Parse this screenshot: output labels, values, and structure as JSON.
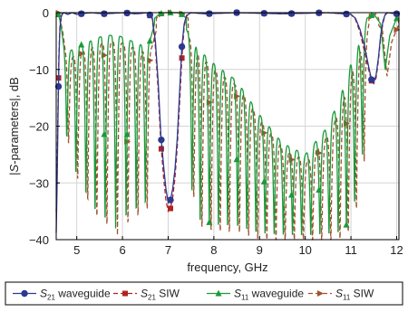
{
  "chart_data": {
    "type": "line",
    "xlabel": "frequency, GHz",
    "ylabel_parts": [
      "|",
      "S",
      "-parameters|, dB"
    ],
    "xlim": [
      4.55,
      12.05
    ],
    "ylim": [
      -40,
      0
    ],
    "xticks": [
      5,
      6,
      7,
      8,
      9,
      10,
      11,
      12
    ],
    "yticks": [
      0,
      -10,
      -20,
      -30,
      -40
    ],
    "grid": true,
    "legend_position": "bottom",
    "series": [
      {
        "name_main": "S",
        "name_sub": "21",
        "name_tail": " waveguide",
        "color": "#2b3990",
        "dash": "",
        "marker": "circle",
        "x": [
          4.55,
          4.57,
          4.59,
          4.61,
          4.63,
          4.65,
          4.68,
          4.72,
          4.8,
          4.9,
          5.0,
          5.3,
          5.6,
          6.0,
          6.3,
          6.55,
          6.65,
          6.72,
          6.78,
          6.84,
          6.9,
          6.95,
          7.0,
          7.05,
          7.1,
          7.15,
          7.2,
          7.25,
          7.3,
          7.35,
          7.4,
          7.5,
          7.8,
          8.5,
          9.5,
          10.5,
          11.0,
          11.1,
          11.2,
          11.3,
          11.4,
          11.45,
          11.5,
          11.55,
          11.6,
          11.65,
          11.7,
          11.75,
          11.8,
          12.0
        ],
        "y": [
          -38.8,
          -30,
          -18,
          -8,
          -3,
          -1,
          -0.3,
          0,
          -0.3,
          0,
          -0.3,
          0,
          -0.2,
          0,
          -0.2,
          0,
          -0.8,
          -5,
          -12,
          -21.5,
          -27,
          -31,
          -33.5,
          -33,
          -31,
          -27.5,
          -22,
          -14,
          -6,
          -2,
          -0.5,
          0,
          -0.2,
          0,
          -0.2,
          0,
          -0.3,
          -1,
          -3,
          -6,
          -10,
          -11.8,
          -12.3,
          -11,
          -8,
          -4,
          -1.5,
          -0.3,
          0,
          -0.2
        ]
      },
      {
        "name_main": "S",
        "name_sub": "21",
        "name_tail": " SIW",
        "color": "#b22222",
        "dash": "5,3",
        "marker": "square",
        "x": [
          4.55,
          4.57,
          4.59,
          4.61,
          4.63,
          4.65,
          4.68,
          4.72,
          4.8,
          4.9,
          5.0,
          5.3,
          5.6,
          6.0,
          6.3,
          6.55,
          6.65,
          6.72,
          6.78,
          6.84,
          6.9,
          6.95,
          7.0,
          7.05,
          7.1,
          7.15,
          7.2,
          7.25,
          7.3,
          7.35,
          7.4,
          7.5,
          7.8,
          8.5,
          9.5,
          10.5,
          11.0,
          11.1,
          11.2,
          11.3,
          11.4,
          11.45,
          11.5,
          11.55,
          11.6,
          11.65,
          11.7,
          11.75,
          11.8,
          12.0
        ],
        "y": [
          -35,
          -28,
          -16,
          -7,
          -2.5,
          -0.8,
          -0.2,
          0,
          -0.3,
          0,
          -0.3,
          0,
          -0.2,
          0,
          -0.2,
          0,
          -1,
          -6,
          -13.5,
          -23,
          -29,
          -33,
          -35,
          -34.5,
          -32.5,
          -29,
          -23.5,
          -16,
          -8,
          -2.5,
          -0.6,
          0,
          -0.2,
          0,
          -0.2,
          0,
          -0.3,
          -1.2,
          -3.5,
          -7,
          -10.5,
          -12,
          -12.5,
          -11.5,
          -8.5,
          -4.5,
          -1.8,
          -0.4,
          0,
          -0.2
        ]
      },
      {
        "name_main": "S",
        "name_sub": "11",
        "name_tail": " waveguide",
        "color": "#1a9a3a",
        "dash": "",
        "marker": "triangle",
        "band_shape_x": [
          4.55,
          4.6,
          4.65,
          4.7,
          4.8,
          5.0,
          5.3,
          5.6,
          5.9,
          6.2,
          6.5,
          6.6,
          6.7
        ],
        "band_shape_y": [
          0,
          -0.3,
          -2,
          -5,
          -7,
          -6,
          -5,
          -4,
          -4,
          -5,
          -6,
          -5,
          -2
        ],
        "band_floor_x": [
          4.7,
          5.0,
          5.5,
          6.0,
          6.5,
          6.7
        ],
        "band_floor_y": [
          -20,
          -30,
          -38,
          -38,
          -35,
          -30
        ],
        "band_ripple_f": [
          4.78,
          4.98,
          5.2,
          5.4,
          5.62,
          5.85,
          6.08,
          6.3,
          6.5
        ],
        "stop_x": [
          6.7,
          6.8,
          6.9,
          7.0,
          7.1,
          7.2,
          7.3,
          7.4
        ],
        "stop_y": [
          -1,
          -0.3,
          0,
          0,
          0,
          0,
          -0.3,
          -1
        ],
        "pass_shape_x": [
          7.4,
          7.6,
          8.0,
          8.5,
          9.0,
          9.5,
          10.0,
          10.5,
          10.8,
          11.0,
          11.2,
          11.3,
          11.35
        ],
        "pass_shape_y": [
          -3,
          -6,
          -9,
          -12,
          -18,
          -23,
          -25,
          -20,
          -14,
          -9,
          -5,
          -3,
          -1
        ],
        "pass_floor_x": [
          7.4,
          7.6,
          8.0,
          8.5,
          9.0,
          9.5,
          10.0,
          10.5,
          10.8,
          11.0,
          11.2,
          11.3,
          11.35
        ],
        "pass_floor_y": [
          -25,
          -38,
          -39,
          -39,
          -40,
          -40,
          -40,
          -40,
          -40,
          -38,
          -30,
          -20,
          -10
        ],
        "pass_ripple_f": [
          7.52,
          7.7,
          7.9,
          8.1,
          8.3,
          8.52,
          8.72,
          8.92,
          9.12,
          9.32,
          9.52,
          9.72,
          9.92,
          10.12,
          10.32,
          10.52,
          10.72,
          10.9,
          11.08,
          11.25
        ],
        "tail_x": [
          11.35,
          11.5,
          11.65,
          11.75,
          11.85,
          12.0
        ],
        "tail_y": [
          -1,
          -0.2,
          -2,
          -10,
          -4,
          -1
        ]
      },
      {
        "name_main": "S",
        "name_sub": "11",
        "name_tail": " SIW",
        "color": "#a0522d",
        "dash": "5,3",
        "marker": "arrow",
        "offset_db": -1.2,
        "freq_shift": 0.04
      }
    ]
  }
}
